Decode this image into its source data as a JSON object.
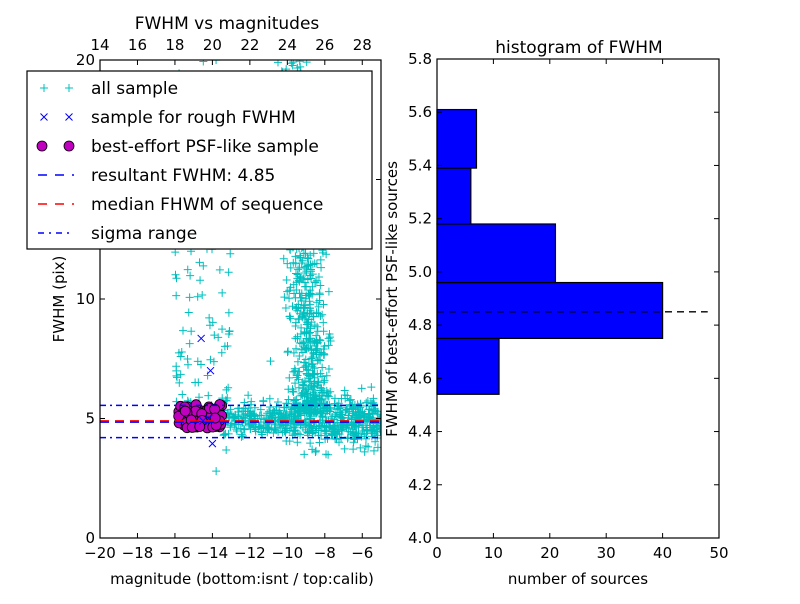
{
  "chart_data": [
    {
      "type": "scatter",
      "title": "FWHM vs magnitudes",
      "xlabel": "magnitude (bottom:isnt / top:calib)",
      "ylabel": "FWHM (pix)",
      "xlim": [
        -20,
        -5
      ],
      "ylim": [
        0,
        20
      ],
      "x_ticks": [
        -20,
        -18,
        -16,
        -14,
        -12,
        -10,
        -8,
        -6
      ],
      "x_tick_labels": [
        "−20",
        "−18",
        "−16",
        "−14",
        "−12",
        "−10",
        "−8",
        "−6"
      ],
      "top_x_ticks": [
        14,
        16,
        18,
        20,
        22,
        24,
        26,
        28
      ],
      "top_x_tick_labels": [
        "14",
        "16",
        "18",
        "20",
        "22",
        "24",
        "26",
        "28"
      ],
      "top_axis_offset": 34,
      "y_ticks": [
        0,
        5,
        10,
        15,
        20
      ],
      "y_tick_labels": [
        "0",
        "5",
        "10",
        "15",
        "20"
      ],
      "grid": false,
      "legend_position": "top-left",
      "legend": [
        {
          "label": "all sample",
          "marker": "plus",
          "color": "#00bfbf"
        },
        {
          "label": "sample for rough FWHM",
          "marker": "x",
          "color": "#0000ff"
        },
        {
          "label": "best-effort PSF-like sample",
          "marker": "circle",
          "color": "#bf00bf"
        },
        {
          "label": "resultant FWHM: 4.85",
          "marker": "dashed",
          "color": "#0000ff"
        },
        {
          "label": "median FHWM of sequence",
          "marker": "dashed",
          "color": "#ff0000"
        },
        {
          "label": "sigma range",
          "marker": "dashdot",
          "color": "#0000ff"
        }
      ],
      "series": [
        {
          "name": "all sample",
          "color": "#00bfbf",
          "clusters": [
            {
              "desc": "faint branch",
              "x_range": [
                -13.5,
                -5
              ],
              "y_center": 4.9,
              "y_spread": 0.35,
              "count": 600
            },
            {
              "desc": "vertical plume",
              "x_center": -9.2,
              "x_spread": 0.6,
              "y_range": [
                5.2,
                20
              ],
              "count": 700
            },
            {
              "desc": "bright scattered",
              "x_range": [
                -16,
                -13
              ],
              "y_range": [
                5.5,
                20
              ],
              "count": 120
            }
          ],
          "outliers": [
            [
              -13.8,
              2.8
            ],
            [
              -8.5,
              3.6
            ],
            [
              -9.1,
              3.5
            ],
            [
              -13.4,
              4.3
            ],
            [
              -15.0,
              5.1
            ],
            [
              -6.2,
              4.4
            ],
            [
              -5.2,
              4.6
            ],
            [
              -10.9,
              7.4
            ],
            [
              -10.0,
              13.5
            ]
          ]
        },
        {
          "name": "sample for rough FWHM",
          "color": "#0000ff",
          "points": [
            [
              -14.6,
              8.35
            ],
            [
              -14.1,
              7.0
            ],
            [
              -14.0,
              3.95
            ],
            [
              -14.5,
              4.9
            ],
            [
              -14.2,
              5.0
            ]
          ]
        },
        {
          "name": "best-effort PSF-like sample",
          "color": "#bf00bf",
          "x_range": [
            -15.8,
            -13.5
          ],
          "y_range": [
            4.6,
            5.6
          ],
          "count": 90
        }
      ],
      "lines": [
        {
          "name": "resultant FWHM: 4.85",
          "y": 4.85,
          "color": "#0000ff",
          "style": "dashed"
        },
        {
          "name": "median FHWM of sequence",
          "y": 4.9,
          "color": "#ff0000",
          "style": "dashed"
        },
        {
          "name": "sigma range upper",
          "y": 5.55,
          "color": "#0000ff",
          "style": "dashdot"
        },
        {
          "name": "sigma range lower",
          "y": 4.2,
          "color": "#0000ff",
          "style": "dashdot"
        }
      ]
    },
    {
      "type": "bar",
      "orientation": "horizontal",
      "title": "histogram of FWHM",
      "xlabel": "number of sources",
      "ylabel": "FWHM of best-effort PSF-like sources",
      "xlim": [
        0,
        50
      ],
      "ylim": [
        4.0,
        5.8
      ],
      "x_ticks": [
        0,
        10,
        20,
        30,
        40,
        50
      ],
      "x_tick_labels": [
        "0",
        "10",
        "20",
        "30",
        "40",
        "50"
      ],
      "y_ticks": [
        4.0,
        4.2,
        4.4,
        4.6,
        4.8,
        5.0,
        5.2,
        5.4,
        5.6,
        5.8
      ],
      "y_tick_labels": [
        "4.0",
        "4.2",
        "4.4",
        "4.6",
        "4.8",
        "5.0",
        "5.2",
        "5.4",
        "5.6",
        "5.8"
      ],
      "grid": false,
      "bar_color": "#0000ff",
      "bins": [
        {
          "from": 4.54,
          "to": 4.75,
          "count": 11
        },
        {
          "from": 4.75,
          "to": 4.96,
          "count": 40
        },
        {
          "from": 4.96,
          "to": 5.18,
          "count": 21
        },
        {
          "from": 5.18,
          "to": 5.39,
          "count": 6
        },
        {
          "from": 5.39,
          "to": 5.61,
          "count": 7
        }
      ],
      "reference_line": {
        "y": 4.85,
        "x_extent": [
          0,
          48
        ],
        "color": "#000000",
        "style": "dashed"
      }
    }
  ]
}
